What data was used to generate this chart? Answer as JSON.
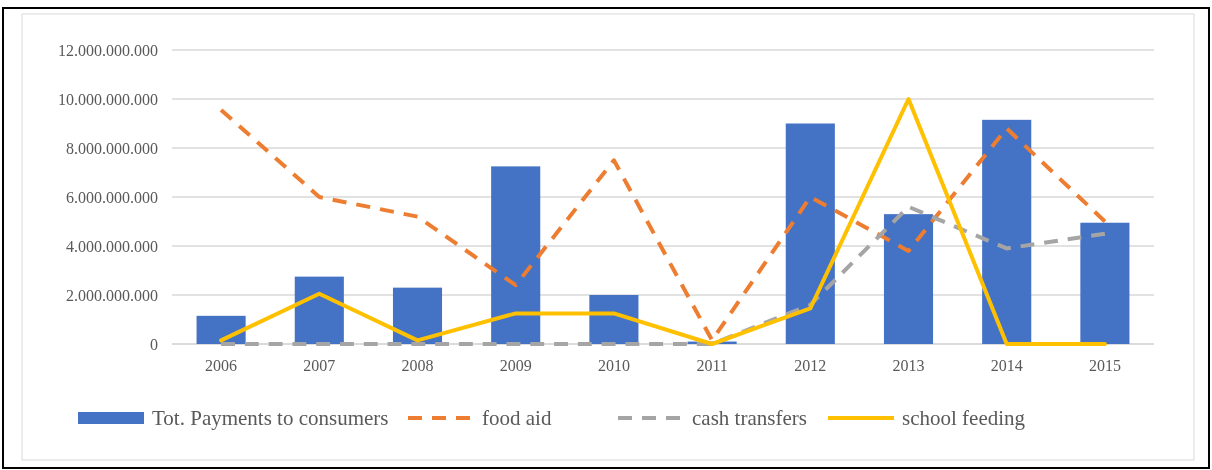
{
  "chart_data": {
    "type": "bar",
    "categories": [
      "2006",
      "2007",
      "2008",
      "2009",
      "2010",
      "2011",
      "2012",
      "2013",
      "2014",
      "2015"
    ],
    "series": [
      {
        "name": "Tot. Payments to consumers",
        "color": "#4472c4",
        "values": [
          1150000000,
          2750000000,
          2300000000,
          7250000000,
          2000000000,
          100000000,
          9000000000,
          5300000000,
          9150000000,
          4950000000
        ]
      },
      {
        "name": "food aid",
        "type": "line",
        "line_style": "dashed",
        "color": "#ed7d31",
        "values": [
          9550000000,
          6000000000,
          5200000000,
          2400000000,
          7500000000,
          150000000,
          6000000000,
          3800000000,
          8800000000,
          5000000000
        ]
      },
      {
        "name": "cash transfers",
        "type": "line",
        "line_style": "dashed",
        "color": "#a5a5a5",
        "values": [
          0,
          0,
          0,
          0,
          0,
          0,
          1600000000,
          5600000000,
          3900000000,
          4500000000
        ]
      },
      {
        "name": "school feeding",
        "type": "line",
        "line_style": "solid",
        "color": "#ffc000",
        "values": [
          150000000,
          2050000000,
          150000000,
          1250000000,
          1250000000,
          0,
          1450000000,
          10000000000,
          0,
          0
        ]
      }
    ],
    "ylim": [
      0,
      12000000000
    ],
    "yticks": [
      0,
      {
        "value": 2000000000,
        "label": "2.000.000.000"
      },
      {
        "value": 4000000000,
        "label": "4.000.000.000"
      },
      {
        "value": 6000000000,
        "label": "6.000.000.000"
      },
      {
        "value": 8000000000,
        "label": "8.000.000.000"
      },
      {
        "value": 10000000000,
        "label": "10.000.000.000"
      },
      {
        "value": 12000000000,
        "label": "12.000.000.000"
      }
    ],
    "grid": "y",
    "legend": "bottom"
  }
}
